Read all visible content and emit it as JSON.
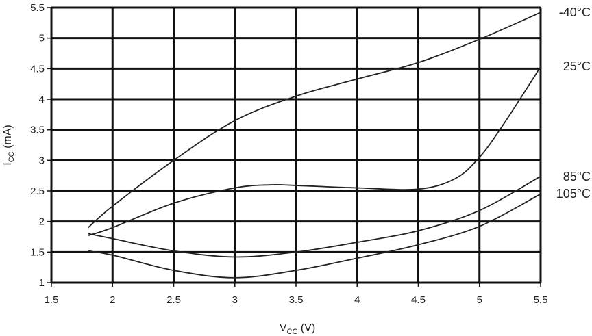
{
  "chart_data": {
    "type": "line",
    "title": "",
    "xlabel": {
      "main": "V",
      "sub": "CC",
      "unit": " (V)"
    },
    "ylabel": {
      "main": "I",
      "sub": "CC",
      "unit": " (mA)"
    },
    "xlim": [
      1.5,
      5.5
    ],
    "ylim": [
      1,
      5.5
    ],
    "xticks": [
      1.5,
      2,
      2.5,
      3,
      3.5,
      4,
      4.5,
      5,
      5.5
    ],
    "xtick_labels": [
      "1.5",
      "2",
      "2.5",
      "3",
      "3.5",
      "4",
      "4.5",
      "5",
      "5.5"
    ],
    "yticks": [
      1,
      1.5,
      2,
      2.5,
      3,
      3.5,
      4,
      4.5,
      5,
      5.5
    ],
    "ytick_labels": [
      "1",
      "1.5",
      "2",
      "2.5",
      "3",
      "3.5",
      "4",
      "4.5",
      "5",
      "5.5"
    ],
    "grid": true,
    "series": [
      {
        "name": "-40°C",
        "x": [
          1.8,
          2.0,
          2.5,
          3.0,
          3.5,
          4.0,
          4.5,
          5.0,
          5.5
        ],
        "y": [
          1.9,
          2.25,
          3.0,
          3.65,
          4.05,
          4.33,
          4.6,
          4.98,
          5.42
        ]
      },
      {
        "name": "25°C",
        "x": [
          1.8,
          2.0,
          2.5,
          3.0,
          3.3,
          3.5,
          4.0,
          4.5,
          4.8,
          5.0,
          5.2,
          5.5
        ],
        "y": [
          1.77,
          1.9,
          2.3,
          2.55,
          2.6,
          2.59,
          2.55,
          2.53,
          2.7,
          3.05,
          3.6,
          4.53
        ]
      },
      {
        "name": "85°C",
        "x": [
          1.8,
          2.0,
          2.5,
          3.0,
          3.5,
          4.0,
          4.5,
          5.0,
          5.5
        ],
        "y": [
          1.8,
          1.72,
          1.52,
          1.42,
          1.5,
          1.66,
          1.85,
          2.18,
          2.74
        ]
      },
      {
        "name": "105°C",
        "x": [
          1.8,
          2.0,
          2.5,
          3.0,
          3.5,
          4.0,
          4.5,
          5.0,
          5.5
        ],
        "y": [
          1.52,
          1.45,
          1.2,
          1.08,
          1.2,
          1.4,
          1.62,
          1.92,
          2.45
        ]
      }
    ]
  }
}
